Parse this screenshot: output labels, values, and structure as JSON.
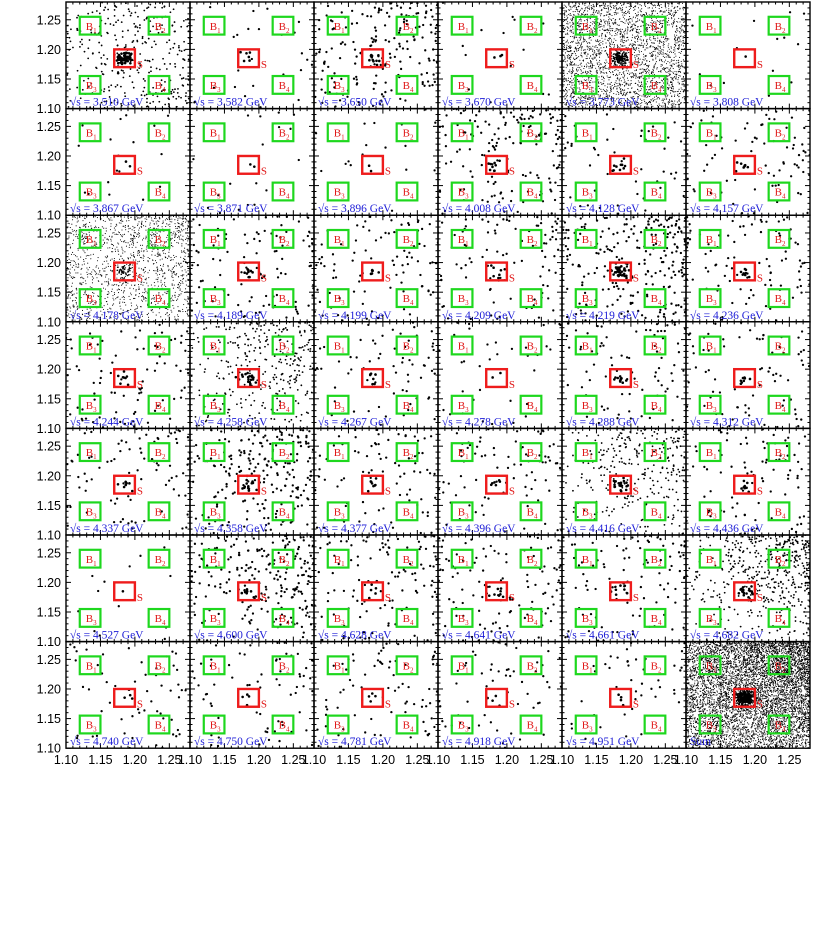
{
  "chart_data": {
    "type": "scatter",
    "layout": "7x6 grid of small-multiple 2D scatter plots",
    "axis_range": [
      1.1,
      1.28
    ],
    "x_ticks": [
      "1.10",
      "1.15",
      "1.20",
      "1.25"
    ],
    "y_ticks": [
      "1.10",
      "1.15",
      "1.20",
      "1.25"
    ],
    "x_tick_values": [
      1.1,
      1.15,
      1.2,
      1.25
    ],
    "y_tick_values": [
      1.1,
      1.15,
      1.2,
      1.25
    ],
    "energy_prefix": "√s = ",
    "energy_unit": " GeV",
    "colors": {
      "signal_box": "#ee1c1c",
      "sideband_box": "#1ed71e",
      "energy_text": "#1c1cd6",
      "points": "#000000"
    },
    "signal_region": {
      "label": "S",
      "x": [
        1.17,
        1.2
      ],
      "y": [
        1.17,
        1.2
      ]
    },
    "sideband_regions": [
      {
        "label": "B1",
        "x": [
          1.12,
          1.15
        ],
        "y": [
          1.225,
          1.255
        ]
      },
      {
        "label": "B2",
        "x": [
          1.22,
          1.25
        ],
        "y": [
          1.225,
          1.255
        ]
      },
      {
        "label": "B3",
        "x": [
          1.12,
          1.15
        ],
        "y": [
          1.125,
          1.155
        ]
      },
      {
        "label": "B4",
        "x": [
          1.22,
          1.25
        ],
        "y": [
          1.125,
          1.155
        ]
      }
    ],
    "panels": [
      {
        "energy": "3.510",
        "density": 320,
        "peak": 60,
        "grad": 0
      },
      {
        "energy": "3.582",
        "density": 25,
        "peak": 6,
        "grad": 0
      },
      {
        "energy": "3.650",
        "density": 180,
        "peak": 12,
        "grad": 0.4
      },
      {
        "energy": "3.670",
        "density": 14,
        "peak": 3,
        "grad": 0
      },
      {
        "energy": "3.773",
        "density": 2600,
        "peak": 150,
        "grad": 0
      },
      {
        "energy": "3.808",
        "density": 14,
        "peak": 1,
        "grad": 0
      },
      {
        "energy": "3.867",
        "density": 18,
        "peak": 2,
        "grad": 0
      },
      {
        "energy": "3.871",
        "density": 18,
        "peak": 2,
        "grad": 0
      },
      {
        "energy": "3.896",
        "density": 18,
        "peak": 2,
        "grad": 0
      },
      {
        "energy": "4.008",
        "density": 150,
        "peak": 10,
        "grad": 0.5
      },
      {
        "energy": "4.128",
        "density": 45,
        "peak": 10,
        "grad": 0
      },
      {
        "energy": "4.157",
        "density": 75,
        "peak": 8,
        "grad": 0.3
      },
      {
        "energy": "4.178",
        "density": 1400,
        "peak": 40,
        "grad": 0.2
      },
      {
        "energy": "4.189",
        "density": 100,
        "peak": 10,
        "grad": 0.3
      },
      {
        "energy": "4.199",
        "density": 90,
        "peak": 8,
        "grad": 0.3
      },
      {
        "energy": "4.209",
        "density": 90,
        "peak": 8,
        "grad": 0.3
      },
      {
        "energy": "4.219",
        "density": 240,
        "peak": 30,
        "grad": 0.3
      },
      {
        "energy": "4.236",
        "density": 90,
        "peak": 8,
        "grad": 0.3
      },
      {
        "energy": "4.244",
        "density": 85,
        "peak": 8,
        "grad": 0.3
      },
      {
        "energy": "4.258",
        "density": 300,
        "peak": 20,
        "grad": 0.6
      },
      {
        "energy": "4.267",
        "density": 70,
        "peak": 6,
        "grad": 0.3
      },
      {
        "energy": "4.278",
        "density": 35,
        "peak": 2,
        "grad": 0.3
      },
      {
        "energy": "4.288",
        "density": 80,
        "peak": 10,
        "grad": 0.3
      },
      {
        "energy": "4.312",
        "density": 75,
        "peak": 8,
        "grad": 0.3
      },
      {
        "energy": "4.337",
        "density": 85,
        "peak": 8,
        "grad": 0.3
      },
      {
        "energy": "4.358",
        "density": 210,
        "peak": 14,
        "grad": 0.6
      },
      {
        "energy": "4.377",
        "density": 85,
        "peak": 8,
        "grad": 0.3
      },
      {
        "energy": "4.396",
        "density": 85,
        "peak": 6,
        "grad": 0.3
      },
      {
        "energy": "4.416",
        "density": 280,
        "peak": 20,
        "grad": 0.6
      },
      {
        "energy": "4.436",
        "density": 85,
        "peak": 8,
        "grad": 0.3
      },
      {
        "energy": "4.527",
        "density": 14,
        "peak": 1,
        "grad": 0
      },
      {
        "energy": "4.600",
        "density": 210,
        "peak": 10,
        "grad": 0.6
      },
      {
        "energy": "4.628",
        "density": 110,
        "peak": 6,
        "grad": 0.3
      },
      {
        "energy": "4.641",
        "density": 110,
        "peak": 8,
        "grad": 0.3
      },
      {
        "energy": "4.661",
        "density": 100,
        "peak": 8,
        "grad": 0.3
      },
      {
        "energy": "4.682",
        "density": 450,
        "peak": 18,
        "grad": 0.85
      },
      {
        "energy": "4.740",
        "density": 55,
        "peak": 4,
        "grad": 0.3
      },
      {
        "energy": "4.750",
        "density": 70,
        "peak": 4,
        "grad": 0.3
      },
      {
        "energy": "4.781",
        "density": 75,
        "peak": 4,
        "grad": 0.3
      },
      {
        "energy": "4.918",
        "density": 55,
        "peak": 4,
        "grad": 0.3
      },
      {
        "energy": "4.951",
        "density": 45,
        "peak": 4,
        "grad": 0.3
      },
      {
        "label": "Sum",
        "density": 6500,
        "peak": 450,
        "grad": 0.3
      }
    ]
  }
}
